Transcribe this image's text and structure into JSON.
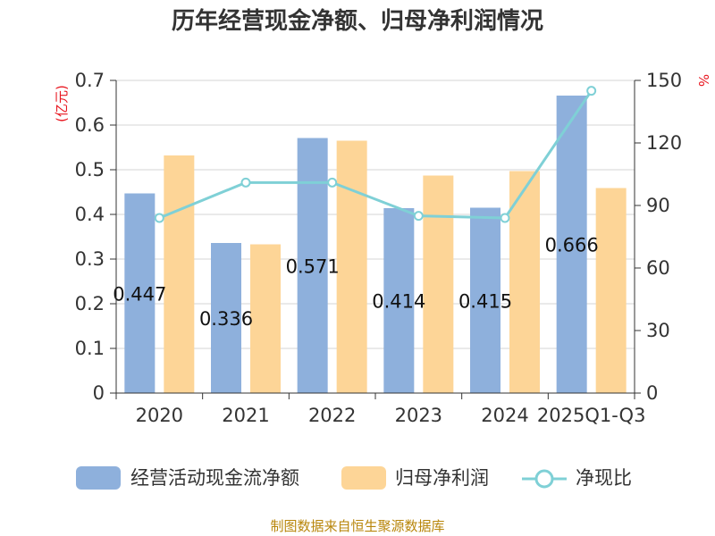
{
  "chart_data": {
    "type": "bar",
    "title": "历年经营现金净额、归母净利润情况",
    "categories": [
      "2020",
      "2021",
      "2022",
      "2023",
      "2024",
      "2025Q1-Q3"
    ],
    "left_unit": "(亿元)",
    "right_unit": "%",
    "ylim": [
      0,
      0.7
    ],
    "y_ticks": [
      "0",
      "0.1",
      "0.2",
      "0.3",
      "0.4",
      "0.5",
      "0.6",
      "0.7"
    ],
    "y2lim": [
      0,
      150
    ],
    "y2_ticks": [
      "0",
      "30",
      "60",
      "90",
      "120",
      "150"
    ],
    "series": [
      {
        "name": "经营活动现金流净额",
        "kind": "bar",
        "color": "#8eb0dc",
        "values": [
          0.447,
          0.336,
          0.571,
          0.414,
          0.415,
          0.666
        ],
        "labels": [
          "0.447",
          "0.336",
          "0.571",
          "0.414",
          "0.415",
          "0.666"
        ]
      },
      {
        "name": "归母净利润",
        "kind": "bar",
        "color": "#fdd597",
        "values": [
          0.532,
          0.333,
          0.565,
          0.487,
          0.497,
          0.459
        ]
      },
      {
        "name": "净现比",
        "kind": "line",
        "axis": "right",
        "color": "#7fd0d6",
        "values": [
          84,
          101,
          101,
          85,
          84,
          145
        ]
      }
    ],
    "grid": true,
    "legend": "bottom"
  },
  "source": "制图数据来自恒生聚源数据库"
}
